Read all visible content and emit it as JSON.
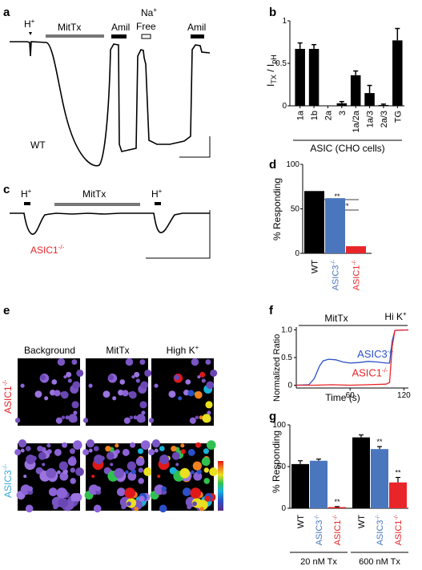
{
  "panel_letters": {
    "a": "a",
    "b": "b",
    "c": "c",
    "d": "d",
    "e": "e",
    "f": "f",
    "g": "g"
  },
  "panel_a": {
    "markers": [
      {
        "id": "h",
        "text": "H",
        "sup": "+"
      },
      {
        "id": "mittx",
        "text": "MitTx"
      },
      {
        "id": "amil1",
        "text": "Amil"
      },
      {
        "id": "na",
        "text": "Na",
        "sup": "+"
      },
      {
        "id": "free",
        "text": "Free"
      },
      {
        "id": "amil2",
        "text": "Amil"
      }
    ],
    "trace_label": "WT"
  },
  "panel_c": {
    "markers": [
      {
        "id": "h1",
        "text": "H",
        "sup": "+"
      },
      {
        "id": "mittx",
        "text": "MitTx"
      },
      {
        "id": "h2",
        "text": "H",
        "sup": "+"
      }
    ],
    "trace_label": "ASIC1",
    "trace_label_sup": "-/-"
  },
  "chart_data": [
    {
      "panel": "b",
      "type": "bar",
      "ylabel": "I",
      "ylabel_parts": {
        "i1": "I",
        "s1": "TX",
        "slash": " / I",
        "s2": "pH"
      },
      "xlabel": "ASIC (CHO cells)",
      "ylim": [
        0,
        1
      ],
      "yticks": [
        "0",
        "0.5",
        "1"
      ],
      "categories": [
        "1a",
        "1b",
        "2a",
        "3",
        "1a/2a",
        "1a/3",
        "2a/3",
        "TG"
      ],
      "values": [
        0.67,
        0.67,
        0.0,
        0.03,
        0.36,
        0.15,
        0.01,
        0.77
      ],
      "errors": [
        0.07,
        0.05,
        0.0,
        0.02,
        0.05,
        0.09,
        0.01,
        0.14
      ]
    },
    {
      "panel": "d",
      "type": "bar",
      "ylabel": "% Responding",
      "ylim": [
        0,
        100
      ],
      "yticks": [
        "0",
        "50",
        "100"
      ],
      "categories": [
        "WT",
        "ASIC3",
        "ASIC1"
      ],
      "category_sups": [
        "",
        "-/-",
        "-/-"
      ],
      "values": [
        70,
        62,
        8
      ],
      "colors": [
        "#000000",
        "#4a76bd",
        "#e8262a"
      ],
      "significance": [
        "**",
        "**"
      ]
    },
    {
      "panel": "f",
      "type": "line",
      "ylabel": "Normalized Ratio",
      "xlabel": "Time (s)",
      "xlim": [
        0,
        125
      ],
      "ylim": [
        -0.05,
        1.05
      ],
      "xticks": [
        "60",
        "120"
      ],
      "yticks": [
        "0",
        "0.5",
        "1.0"
      ],
      "condition_labels": [
        {
          "text": "MitTx"
        },
        {
          "text": "Hi K",
          "sup": "+"
        }
      ],
      "series": [
        {
          "name": "ASIC3",
          "name_sup": "-/-",
          "color": "#2b50c8",
          "x": [
            0,
            14,
            20,
            26,
            30,
            36,
            44,
            52,
            60,
            70,
            80,
            90,
            100,
            104,
            107,
            110,
            125
          ],
          "y": [
            0,
            0.01,
            0.12,
            0.35,
            0.44,
            0.47,
            0.46,
            0.42,
            0.4,
            0.41,
            0.43,
            0.42,
            0.4,
            0.4,
            0.8,
            0.99,
            1.0
          ]
        },
        {
          "name": "ASIC1",
          "name_sup": "-/-",
          "color": "#e8262a",
          "x": [
            0,
            20,
            40,
            60,
            80,
            100,
            104,
            107,
            110,
            125
          ],
          "y": [
            0,
            0.0,
            0.01,
            0.0,
            0.01,
            0.02,
            0.05,
            0.7,
            0.99,
            1.0
          ]
        }
      ]
    },
    {
      "panel": "g",
      "type": "bar",
      "ylabel": "% Responding",
      "ylim": [
        0,
        100
      ],
      "yticks": [
        "0",
        "50",
        "100"
      ],
      "groups": [
        {
          "label": "20 nM Tx",
          "categories": [
            "WT",
            "ASIC3",
            "ASIC1"
          ],
          "category_sups": [
            "",
            "-/-",
            "-/-"
          ],
          "values": [
            53,
            57,
            1
          ],
          "errors": [
            4,
            2,
            1
          ],
          "significance": [
            "",
            "",
            "**"
          ]
        },
        {
          "label": "600 nM Tx",
          "categories": [
            "WT",
            "ASIC3",
            "ASIC1"
          ],
          "category_sups": [
            "",
            "-/-",
            "-/-"
          ],
          "values": [
            85,
            71,
            31
          ],
          "errors": [
            3,
            3,
            6
          ],
          "significance": [
            "",
            "**",
            "**"
          ]
        }
      ],
      "colors": [
        "#000000",
        "#4a76bd",
        "#e8262a"
      ]
    }
  ],
  "panel_e": {
    "column_labels": [
      {
        "text": "Background"
      },
      {
        "text": "MitTx"
      },
      {
        "text": "High K",
        "sup": "+"
      }
    ],
    "row_labels": [
      {
        "text": "ASIC1",
        "sup": "-/-",
        "color": "#e8262a"
      },
      {
        "text": "ASIC3",
        "sup": "-/-",
        "color": "#3aa9d8"
      }
    ]
  }
}
